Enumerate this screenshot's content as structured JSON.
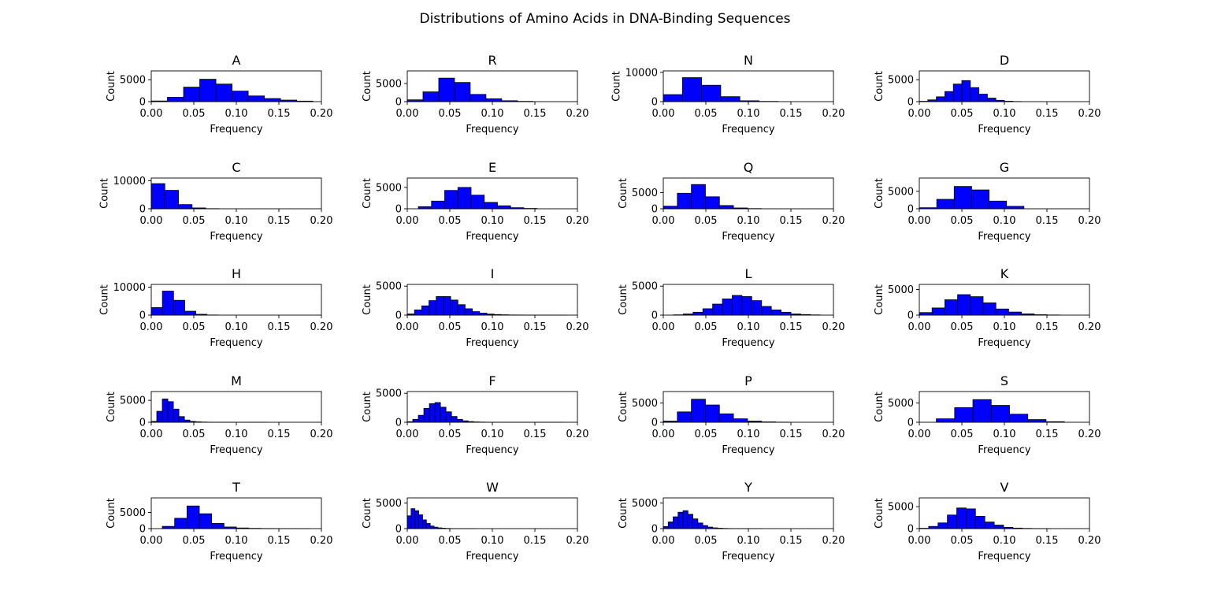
{
  "figure": {
    "suptitle": "Distributions of Amino Acids in DNA-Binding Sequences"
  },
  "colors": {
    "bar_fill": "#0000ff",
    "bar_edge": "#000000",
    "axes": "#000000",
    "background": "#ffffff"
  },
  "chart_data": [
    {
      "type": "bar",
      "title": "A",
      "xlabel": "Frequency",
      "ylabel": "Count",
      "xlim": [
        0,
        0.2
      ],
      "ylim": [
        0,
        7000
      ],
      "xticks": [
        "0.00",
        "0.05",
        "0.10",
        "0.15",
        "0.20"
      ],
      "yticks": [
        {
          "v": 0,
          "label": "0"
        },
        {
          "v": 5000,
          "label": "5000"
        }
      ],
      "bin_edges": [
        0,
        0.019,
        0.038,
        0.057,
        0.076,
        0.095,
        0.114,
        0.133,
        0.152,
        0.171,
        0.19
      ],
      "counts": [
        150,
        1000,
        3300,
        5100,
        4000,
        2400,
        1300,
        700,
        350,
        120
      ]
    },
    {
      "type": "bar",
      "title": "R",
      "xlabel": "Frequency",
      "ylabel": "Count",
      "xlim": [
        0,
        0.2
      ],
      "ylim": [
        0,
        8500
      ],
      "xticks": [
        "0.00",
        "0.05",
        "0.10",
        "0.15",
        "0.20"
      ],
      "yticks": [
        {
          "v": 0,
          "label": "0"
        },
        {
          "v": 5000,
          "label": "5000"
        }
      ],
      "bin_edges": [
        0,
        0.0185,
        0.037,
        0.0555,
        0.074,
        0.0925,
        0.111,
        0.1295,
        0.148
      ],
      "counts": [
        500,
        2700,
        6500,
        5300,
        2000,
        800,
        250,
        80
      ]
    },
    {
      "type": "bar",
      "title": "N",
      "xlabel": "Frequency",
      "ylabel": "Count",
      "xlim": [
        0,
        0.2
      ],
      "ylim": [
        0,
        10500
      ],
      "xticks": [
        "0.00",
        "0.05",
        "0.10",
        "0.15",
        "0.20"
      ],
      "yticks": [
        {
          "v": 0,
          "label": "0"
        },
        {
          "v": 10000,
          "label": "10000"
        }
      ],
      "bin_edges": [
        0,
        0.0225,
        0.045,
        0.0675,
        0.09,
        0.1125,
        0.135
      ],
      "counts": [
        2400,
        8200,
        5600,
        1700,
        300,
        80
      ]
    },
    {
      "type": "bar",
      "title": "D",
      "xlabel": "Frequency",
      "ylabel": "Count",
      "xlim": [
        0,
        0.2
      ],
      "ylim": [
        0,
        7000
      ],
      "xticks": [
        "0.00",
        "0.05",
        "0.10",
        "0.15",
        "0.20"
      ],
      "yticks": [
        {
          "v": 0,
          "label": "0"
        },
        {
          "v": 5000,
          "label": "5000"
        }
      ],
      "bin_edges": [
        0,
        0.01,
        0.02,
        0.03,
        0.04,
        0.05,
        0.06,
        0.07,
        0.08,
        0.09,
        0.1,
        0.11,
        0.12
      ],
      "counts": [
        80,
        400,
        1100,
        2300,
        4000,
        4800,
        3200,
        1700,
        800,
        300,
        100,
        30
      ]
    },
    {
      "type": "bar",
      "title": "C",
      "xlabel": "Frequency",
      "ylabel": "Count",
      "xlim": [
        0,
        0.2
      ],
      "ylim": [
        0,
        11000
      ],
      "xticks": [
        "0.00",
        "0.05",
        "0.10",
        "0.15",
        "0.20"
      ],
      "yticks": [
        {
          "v": 0,
          "label": "0"
        },
        {
          "v": 10000,
          "label": "10000"
        }
      ],
      "bin_edges": [
        0,
        0.016,
        0.032,
        0.048,
        0.064,
        0.08
      ],
      "counts": [
        9000,
        6600,
        1500,
        300,
        50
      ]
    },
    {
      "type": "bar",
      "title": "E",
      "xlabel": "Frequency",
      "ylabel": "Count",
      "xlim": [
        0,
        0.2
      ],
      "ylim": [
        0,
        7200
      ],
      "xticks": [
        "0.00",
        "0.05",
        "0.10",
        "0.15",
        "0.20"
      ],
      "yticks": [
        {
          "v": 0,
          "label": "0"
        },
        {
          "v": 5000,
          "label": "5000"
        }
      ],
      "bin_edges": [
        0.013,
        0.0285,
        0.044,
        0.0595,
        0.075,
        0.0905,
        0.106,
        0.1215,
        0.137,
        0.1525
      ],
      "counts": [
        500,
        1800,
        4300,
        5000,
        3200,
        1500,
        700,
        250,
        80
      ]
    },
    {
      "type": "bar",
      "title": "Q",
      "xlabel": "Frequency",
      "ylabel": "Count",
      "xlim": [
        0,
        0.2
      ],
      "ylim": [
        0,
        9500
      ],
      "xticks": [
        "0.00",
        "0.05",
        "0.10",
        "0.15",
        "0.20"
      ],
      "yticks": [
        {
          "v": 0,
          "label": "0"
        },
        {
          "v": 5000,
          "label": "5000"
        }
      ],
      "bin_edges": [
        0,
        0.0165,
        0.033,
        0.0495,
        0.066,
        0.0825,
        0.099,
        0.1155
      ],
      "counts": [
        800,
        4800,
        7500,
        3700,
        1000,
        250,
        60
      ]
    },
    {
      "type": "bar",
      "title": "G",
      "xlabel": "Frequency",
      "ylabel": "Count",
      "xlim": [
        0,
        0.2
      ],
      "ylim": [
        0,
        8800
      ],
      "xticks": [
        "0.00",
        "0.05",
        "0.10",
        "0.15",
        "0.20"
      ],
      "yticks": [
        {
          "v": 0,
          "label": "0"
        },
        {
          "v": 5000,
          "label": "5000"
        }
      ],
      "bin_edges": [
        0,
        0.0205,
        0.041,
        0.0615,
        0.082,
        0.1025,
        0.123
      ],
      "counts": [
        300,
        2700,
        6400,
        5400,
        2200,
        700
      ]
    },
    {
      "type": "bar",
      "title": "H",
      "xlabel": "Frequency",
      "ylabel": "Count",
      "xlim": [
        0,
        0.2
      ],
      "ylim": [
        0,
        11000
      ],
      "xticks": [
        "0.00",
        "0.05",
        "0.10",
        "0.15",
        "0.20"
      ],
      "yticks": [
        {
          "v": 0,
          "label": "0"
        },
        {
          "v": 10000,
          "label": "10000"
        }
      ],
      "bin_edges": [
        0,
        0.0131,
        0.0262,
        0.0393,
        0.0524,
        0.0655,
        0.0786
      ],
      "counts": [
        2700,
        8600,
        5300,
        1400,
        300,
        50
      ]
    },
    {
      "type": "bar",
      "title": "I",
      "xlabel": "Frequency",
      "ylabel": "Count",
      "xlim": [
        0,
        0.2
      ],
      "ylim": [
        0,
        5300
      ],
      "xticks": [
        "0.00",
        "0.05",
        "0.10",
        "0.15",
        "0.20"
      ],
      "yticks": [
        {
          "v": 0,
          "label": "0"
        },
        {
          "v": 5000,
          "label": "5000"
        }
      ],
      "bin_edges": [
        0,
        0.0085,
        0.017,
        0.0255,
        0.034,
        0.0425,
        0.051,
        0.0595,
        0.068,
        0.0765,
        0.085,
        0.0935,
        0.102,
        0.1105,
        0.119,
        0.1275,
        0.136,
        0.1445,
        0.153,
        0.1615,
        0.17,
        0.1785,
        0.187
      ],
      "counts": [
        200,
        900,
        1600,
        2500,
        3200,
        3200,
        2600,
        1800,
        1100,
        600,
        350,
        180,
        100,
        60,
        30,
        20,
        15,
        10,
        8,
        5,
        3,
        2
      ]
    },
    {
      "type": "bar",
      "title": "L",
      "xlabel": "Frequency",
      "ylabel": "Count",
      "xlim": [
        0,
        0.2
      ],
      "ylim": [
        0,
        5300
      ],
      "xticks": [
        "0.00",
        "0.05",
        "0.10",
        "0.15",
        "0.20"
      ],
      "yticks": [
        {
          "v": 0,
          "label": "0"
        },
        {
          "v": 5000,
          "label": "5000"
        }
      ],
      "bin_edges": [
        0.012,
        0.0235,
        0.035,
        0.0465,
        0.058,
        0.0695,
        0.081,
        0.0925,
        0.104,
        0.1155,
        0.127,
        0.1385,
        0.15,
        0.1615,
        0.173,
        0.1845
      ],
      "counts": [
        50,
        200,
        500,
        1100,
        1900,
        2800,
        3400,
        3200,
        2500,
        1500,
        900,
        500,
        200,
        100,
        40
      ]
    },
    {
      "type": "bar",
      "title": "K",
      "xlabel": "Frequency",
      "ylabel": "Count",
      "xlim": [
        0,
        0.2
      ],
      "ylim": [
        0,
        6000
      ],
      "xticks": [
        "0.00",
        "0.05",
        "0.10",
        "0.15",
        "0.20"
      ],
      "yticks": [
        {
          "v": 0,
          "label": "0"
        },
        {
          "v": 5000,
          "label": "5000"
        }
      ],
      "bin_edges": [
        0,
        0.015,
        0.03,
        0.045,
        0.06,
        0.075,
        0.09,
        0.105,
        0.12,
        0.135,
        0.15,
        0.165
      ],
      "counts": [
        500,
        1400,
        3000,
        4000,
        3600,
        2400,
        1200,
        600,
        250,
        80,
        30
      ]
    },
    {
      "type": "bar",
      "title": "M",
      "xlabel": "Frequency",
      "ylabel": "Count",
      "xlim": [
        0,
        0.2
      ],
      "ylim": [
        0,
        7000
      ],
      "xticks": [
        "0.00",
        "0.05",
        "0.10",
        "0.15",
        "0.20"
      ],
      "yticks": [
        {
          "v": 0,
          "label": "0"
        },
        {
          "v": 5000,
          "label": "5000"
        }
      ],
      "bin_edges": [
        0,
        0.0065,
        0.013,
        0.0195,
        0.026,
        0.0325,
        0.039,
        0.0455,
        0.052,
        0.0585,
        0.065,
        0.0715,
        0.078,
        0.0845,
        0.091,
        0.0975,
        0.104,
        0.1105,
        0.117,
        0.1235,
        0.13,
        0.1365
      ],
      "counts": [
        200,
        2500,
        5300,
        4700,
        3000,
        1300,
        500,
        200,
        100,
        50,
        25,
        15,
        10,
        8,
        5,
        4,
        3,
        2,
        2,
        1,
        1
      ]
    },
    {
      "type": "bar",
      "title": "F",
      "xlabel": "Frequency",
      "ylabel": "Count",
      "xlim": [
        0,
        0.2
      ],
      "ylim": [
        0,
        5300
      ],
      "xticks": [
        "0.00",
        "0.05",
        "0.10",
        "0.15",
        "0.20"
      ],
      "yticks": [
        {
          "v": 0,
          "label": "0"
        },
        {
          "v": 5000,
          "label": "5000"
        }
      ],
      "bin_edges": [
        0,
        0.0065,
        0.013,
        0.0195,
        0.026,
        0.0325,
        0.039,
        0.0455,
        0.052,
        0.0585,
        0.065,
        0.0715,
        0.078,
        0.0845,
        0.091,
        0.0975,
        0.104,
        0.1105,
        0.117,
        0.1235,
        0.13,
        0.1365,
        0.143,
        0.1495,
        0.156,
        0.1625,
        0.169,
        0.1755,
        0.182
      ],
      "counts": [
        100,
        500,
        1200,
        2400,
        3200,
        3400,
        2600,
        1800,
        1000,
        500,
        250,
        120,
        60,
        30,
        15,
        10,
        6,
        4,
        3,
        2,
        2,
        1,
        1,
        1,
        1,
        1,
        1,
        1
      ]
    },
    {
      "type": "bar",
      "title": "P",
      "xlabel": "Frequency",
      "ylabel": "Count",
      "xlim": [
        0,
        0.2
      ],
      "ylim": [
        0,
        8000
      ],
      "xticks": [
        "0.00",
        "0.05",
        "0.10",
        "0.15",
        "0.20"
      ],
      "yticks": [
        {
          "v": 0,
          "label": "0"
        },
        {
          "v": 5000,
          "label": "5000"
        }
      ],
      "bin_edges": [
        0,
        0.0165,
        0.033,
        0.0495,
        0.066,
        0.0825,
        0.099,
        0.1155,
        0.132,
        0.1485
      ],
      "counts": [
        300,
        2700,
        6000,
        4500,
        2200,
        900,
        300,
        100,
        30
      ]
    },
    {
      "type": "bar",
      "title": "S",
      "xlabel": "Frequency",
      "ylabel": "Count",
      "xlim": [
        0,
        0.2
      ],
      "ylim": [
        0,
        8000
      ],
      "xticks": [
        "0.00",
        "0.05",
        "0.10",
        "0.15",
        "0.20"
      ],
      "yticks": [
        {
          "v": 0,
          "label": "0"
        },
        {
          "v": 5000,
          "label": "5000"
        }
      ],
      "bin_edges": [
        0.02,
        0.0415,
        0.063,
        0.0845,
        0.106,
        0.1275,
        0.149,
        0.1705
      ],
      "counts": [
        900,
        3800,
        5900,
        4400,
        2100,
        700,
        150
      ]
    },
    {
      "type": "bar",
      "title": "T",
      "xlabel": "Frequency",
      "ylabel": "Count",
      "xlim": [
        0,
        0.2
      ],
      "ylim": [
        0,
        9500
      ],
      "xticks": [
        "0.00",
        "0.05",
        "0.10",
        "0.15",
        "0.20"
      ],
      "yticks": [
        {
          "v": 0,
          "label": "0"
        },
        {
          "v": 5000,
          "label": "5000"
        }
      ],
      "bin_edges": [
        0.013,
        0.0275,
        0.042,
        0.0565,
        0.071,
        0.0855,
        0.1,
        0.1145,
        0.129,
        0.1435,
        0.158,
        0.1725,
        0.187
      ],
      "counts": [
        700,
        3200,
        7000,
        4600,
        1600,
        500,
        200,
        80,
        40,
        20,
        10,
        5
      ]
    },
    {
      "type": "bar",
      "title": "W",
      "xlabel": "Frequency",
      "ylabel": "Count",
      "xlim": [
        0,
        0.2
      ],
      "ylim": [
        0,
        6000
      ],
      "xticks": [
        "0.00",
        "0.05",
        "0.10",
        "0.15",
        "0.20"
      ],
      "yticks": [
        {
          "v": 0,
          "label": "0"
        },
        {
          "v": 5000,
          "label": "5000"
        }
      ],
      "bin_edges": [
        0,
        0.0045,
        0.009,
        0.0135,
        0.018,
        0.0225,
        0.027,
        0.0315,
        0.036,
        0.0405,
        0.045,
        0.0495,
        0.054,
        0.0585,
        0.063,
        0.0675,
        0.072,
        0.0765,
        0.081
      ],
      "counts": [
        2500,
        3900,
        3500,
        2700,
        1700,
        1000,
        500,
        280,
        150,
        80,
        40,
        20,
        12,
        8,
        5,
        3,
        2,
        1
      ]
    },
    {
      "type": "bar",
      "title": "Y",
      "xlabel": "Frequency",
      "ylabel": "Count",
      "xlim": [
        0,
        0.2
      ],
      "ylim": [
        0,
        6000
      ],
      "xticks": [
        "0.00",
        "0.05",
        "0.10",
        "0.15",
        "0.20"
      ],
      "yticks": [
        {
          "v": 0,
          "label": "0"
        },
        {
          "v": 5000,
          "label": "5000"
        }
      ],
      "bin_edges": [
        0,
        0.0058,
        0.0116,
        0.0174,
        0.0232,
        0.029,
        0.0348,
        0.0406,
        0.0464,
        0.0522,
        0.058,
        0.0638,
        0.0696,
        0.0754,
        0.0812,
        0.087,
        0.0928,
        0.0986,
        0.1044,
        0.1102,
        0.116
      ],
      "counts": [
        400,
        1300,
        2300,
        3200,
        3500,
        2800,
        1900,
        1100,
        600,
        300,
        150,
        80,
        40,
        20,
        12,
        8,
        5,
        3,
        2,
        1
      ]
    },
    {
      "type": "bar",
      "title": "V",
      "xlabel": "Frequency",
      "ylabel": "Count",
      "xlim": [
        0,
        0.2
      ],
      "ylim": [
        0,
        7000
      ],
      "xticks": [
        "0.00",
        "0.05",
        "0.10",
        "0.15",
        "0.20"
      ],
      "yticks": [
        {
          "v": 0,
          "label": "0"
        },
        {
          "v": 5000,
          "label": "5000"
        }
      ],
      "bin_edges": [
        0,
        0.011,
        0.022,
        0.033,
        0.044,
        0.055,
        0.066,
        0.077,
        0.088,
        0.099,
        0.11,
        0.121,
        0.132,
        0.143,
        0.154
      ],
      "counts": [
        80,
        500,
        1300,
        3100,
        4700,
        4500,
        2800,
        1500,
        800,
        300,
        120,
        50,
        20,
        8
      ]
    }
  ]
}
